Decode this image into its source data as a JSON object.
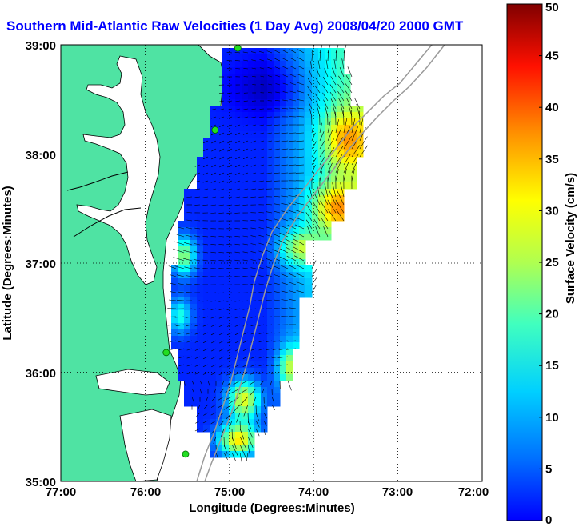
{
  "title": "Southern Mid-Atlantic Raw Velocities (1 Day Avg) 2008/04/20 2000 GMT",
  "xlabel": "Longitude (Degrees:Minutes)",
  "ylabel": "Latitude (Degrees:Minutes)",
  "colorbar_label": "Surface Velocity (cm/s)",
  "x_ticks": [
    "77:00",
    "76:00",
    "75:00",
    "74:00",
    "73:00",
    "72:00"
  ],
  "y_ticks": [
    "39:00",
    "38:00",
    "37:00",
    "36:00",
    "35:00"
  ],
  "colorbar_ticks": [
    "0",
    "5",
    "10",
    "15",
    "20",
    "25",
    "30",
    "35",
    "40",
    "45",
    "50"
  ],
  "colors": {
    "land": "#4fe3a3",
    "water": "#ffffff",
    "title": "#0000ff",
    "arrows": "#000000",
    "bathymetry": "#999999",
    "stations": "#22dd22"
  },
  "chart_data": {
    "type": "heatmap",
    "title": "Southern Mid-Atlantic Raw Velocities (1 Day Avg) 2008/04/20 2000 GMT",
    "xlabel": "Longitude (Degrees:Minutes)",
    "ylabel": "Latitude (Degrees:Minutes)",
    "xlim": [
      -77,
      -72
    ],
    "ylim": [
      35,
      39
    ],
    "colorbar": {
      "label": "Surface Velocity (cm/s)",
      "range": [
        0,
        50
      ],
      "colormap": "jet"
    },
    "grid": true,
    "stations": [
      {
        "lon": -74.9,
        "lat": 38.97
      },
      {
        "lon": -75.17,
        "lat": 38.22
      },
      {
        "lon": -75.75,
        "lat": 36.18
      },
      {
        "lon": -75.52,
        "lat": 35.25
      }
    ]
  }
}
